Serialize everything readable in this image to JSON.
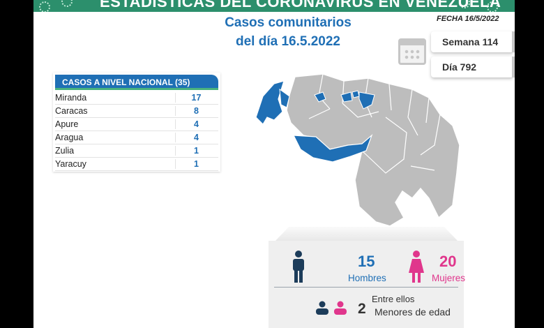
{
  "header": {
    "banner_title": "ESTADÍSTICAS DEL CORONAVIRUS EN VENEZUELA",
    "title_line1": "Casos comunitarios",
    "title_line2": "del día 16.5.2022",
    "fecha": "FECHA 16/5/2022"
  },
  "info": {
    "semana": "Semana 114",
    "dia": "Día 792",
    "calendar_icon": "calendar-icon"
  },
  "table": {
    "heading": "CASOS A NIVEL NACIONAL  (35)",
    "rows": [
      {
        "state": "Miranda",
        "cases": "17"
      },
      {
        "state": "Caracas",
        "cases": "8"
      },
      {
        "state": "Apure",
        "cases": "4"
      },
      {
        "state": "Aragua",
        "cases": "4"
      },
      {
        "state": "Zulia",
        "cases": "1"
      },
      {
        "state": "Yaracuy",
        "cases": "1"
      }
    ]
  },
  "map": {
    "highlight_color": "#1f6fb5",
    "base_color": "#bdbdbd",
    "highlighted_states": [
      "Zulia",
      "Yaracuy",
      "Aragua",
      "Caracas",
      "Miranda",
      "Apure"
    ]
  },
  "stats": {
    "men_count": "15",
    "men_label": "Hombres",
    "women_count": "20",
    "women_label": "Mujeres",
    "among_label": "Entre ellos",
    "minors_count": "2",
    "minors_label": "Menores de edad"
  },
  "colors": {
    "blue": "#1f6fb5",
    "pink": "#e0368c",
    "green": "#2c8f6c",
    "navy": "#1c3c5a"
  }
}
